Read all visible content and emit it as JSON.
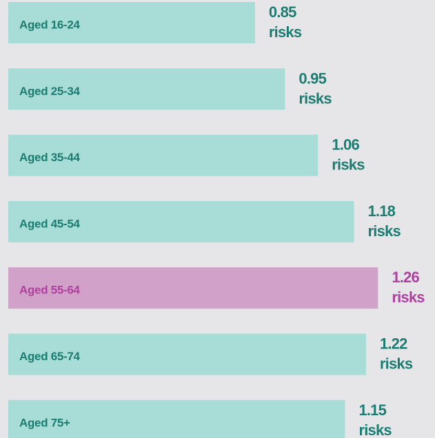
{
  "chart_data": {
    "type": "bar",
    "orientation": "horizontal",
    "categories": [
      "Aged 16-24",
      "Aged 25-34",
      "Aged 35-44",
      "Aged 45-54",
      "Aged 55-64",
      "Aged 65-74",
      "Aged 75+"
    ],
    "values": [
      0.85,
      0.95,
      1.06,
      1.18,
      1.26,
      1.22,
      1.15
    ],
    "value_labels": [
      "0.85",
      "0.95",
      "1.06",
      "1.18",
      "1.26",
      "1.22",
      "1.15"
    ],
    "unit_label": "risks",
    "colors": [
      "#a8dcd6",
      "#a8dcd6",
      "#a8dcd6",
      "#a8dcd6",
      "#d1a1c9",
      "#a8dcd6",
      "#a8dcd6"
    ],
    "label_colors": [
      "#1b7d72",
      "#1b7d72",
      "#1b7d72",
      "#1b7d72",
      "#b0409f",
      "#1b7d72",
      "#1b7d72"
    ],
    "xlim": [
      0,
      1.45
    ]
  }
}
